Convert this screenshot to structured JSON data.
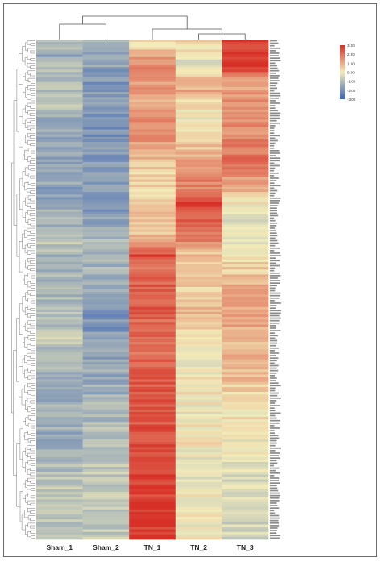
{
  "chart_data": {
    "type": "heatmap",
    "columns": [
      "Sham_1",
      "Sham_2",
      "TN_1",
      "TN_2",
      "TN_3"
    ],
    "legend": {
      "ticks": [
        "3.00",
        "2.00",
        "1.00",
        "0.00",
        "-1.00",
        "-2.00",
        "-3.00"
      ],
      "tick_values": [
        3,
        2,
        1,
        0,
        -1,
        -2,
        -3
      ],
      "range": [
        -3,
        3
      ],
      "placement": "top-right",
      "colors": {
        "high": "#d73027",
        "mid": "#f2ecba",
        "low": "#3b63b5"
      }
    },
    "row_count": 200,
    "column_dendrogram": "Sham_1 and Sham_2 cluster together; TN_2 and TN_3 cluster, then join TN_1",
    "anchors": {
      "Sham_1": [
        [
          0,
          -1.0
        ],
        [
          6,
          -1.6
        ],
        [
          10,
          -1.0
        ],
        [
          15,
          -1.1
        ],
        [
          20,
          -1.0
        ],
        [
          25,
          -0.8
        ],
        [
          30,
          -1.4
        ],
        [
          40,
          -1.6
        ],
        [
          50,
          -1.5
        ],
        [
          60,
          -1.6
        ],
        [
          70,
          -1.3
        ],
        [
          80,
          -0.9
        ],
        [
          90,
          -1.4
        ],
        [
          100,
          -1.2
        ],
        [
          110,
          -1.0
        ],
        [
          120,
          -0.8
        ],
        [
          130,
          -1.2
        ],
        [
          140,
          -1.5
        ],
        [
          150,
          -1.3
        ],
        [
          160,
          -1.4
        ],
        [
          170,
          -1.1
        ],
        [
          180,
          -0.9
        ],
        [
          190,
          -0.8
        ],
        [
          199,
          -0.9
        ]
      ],
      "Sham_2": [
        [
          0,
          -1.1
        ],
        [
          6,
          -1.7
        ],
        [
          10,
          -1.6
        ],
        [
          15,
          -1.9
        ],
        [
          20,
          -1.8
        ],
        [
          25,
          -1.9
        ],
        [
          30,
          -2.0
        ],
        [
          40,
          -1.9
        ],
        [
          50,
          -1.8
        ],
        [
          60,
          -1.7
        ],
        [
          70,
          -1.7
        ],
        [
          80,
          -1.1
        ],
        [
          90,
          -1.2
        ],
        [
          100,
          -1.6
        ],
        [
          110,
          -1.9
        ],
        [
          120,
          -1.8
        ],
        [
          130,
          -1.5
        ],
        [
          140,
          -1.4
        ],
        [
          150,
          -1.1
        ],
        [
          160,
          -0.9
        ],
        [
          170,
          -0.8
        ],
        [
          180,
          -0.7
        ],
        [
          190,
          -0.7
        ],
        [
          199,
          -0.8
        ]
      ],
      "TN_1": [
        [
          0,
          0.2
        ],
        [
          5,
          0.7
        ],
        [
          10,
          1.8
        ],
        [
          15,
          1.5
        ],
        [
          20,
          1.2
        ],
        [
          25,
          1.0
        ],
        [
          30,
          1.4
        ],
        [
          40,
          1.3
        ],
        [
          50,
          0.6
        ],
        [
          60,
          0.3
        ],
        [
          70,
          0.6
        ],
        [
          80,
          0.8
        ],
        [
          86,
          2.8
        ],
        [
          90,
          2.0
        ],
        [
          100,
          2.4
        ],
        [
          110,
          2.2
        ],
        [
          120,
          2.0
        ],
        [
          130,
          2.2
        ],
        [
          140,
          2.4
        ],
        [
          150,
          2.3
        ],
        [
          160,
          2.5
        ],
        [
          170,
          2.6
        ],
        [
          180,
          2.8
        ],
        [
          190,
          2.9
        ],
        [
          199,
          2.9
        ]
      ],
      "TN_2": [
        [
          0,
          0.3
        ],
        [
          5,
          0.0
        ],
        [
          10,
          -0.5
        ],
        [
          15,
          0.6
        ],
        [
          20,
          1.0
        ],
        [
          25,
          0.2
        ],
        [
          30,
          0.0
        ],
        [
          40,
          0.5
        ],
        [
          50,
          1.2
        ],
        [
          55,
          1.8
        ],
        [
          60,
          1.5
        ],
        [
          65,
          2.6
        ],
        [
          70,
          2.4
        ],
        [
          75,
          2.0
        ],
        [
          80,
          1.6
        ],
        [
          85,
          0.8
        ],
        [
          90,
          0.3
        ],
        [
          100,
          0.6
        ],
        [
          110,
          0.9
        ],
        [
          120,
          0.2
        ],
        [
          130,
          -0.2
        ],
        [
          140,
          0.2
        ],
        [
          150,
          -0.1
        ],
        [
          160,
          0.3
        ],
        [
          170,
          -0.4
        ],
        [
          180,
          0.2
        ],
        [
          190,
          0.0
        ],
        [
          199,
          0.1
        ]
      ],
      "TN_3": [
        [
          0,
          2.8
        ],
        [
          10,
          2.9
        ],
        [
          15,
          1.4
        ],
        [
          20,
          1.2
        ],
        [
          30,
          1.5
        ],
        [
          40,
          1.6
        ],
        [
          50,
          2.0
        ],
        [
          60,
          0.8
        ],
        [
          70,
          -0.5
        ],
        [
          75,
          0.3
        ],
        [
          80,
          -0.3
        ],
        [
          85,
          0.2
        ],
        [
          90,
          0.5
        ],
        [
          100,
          0.9
        ],
        [
          110,
          1.3
        ],
        [
          120,
          0.6
        ],
        [
          130,
          1.0
        ],
        [
          140,
          0.4
        ],
        [
          150,
          0.2
        ],
        [
          160,
          0.0
        ],
        [
          170,
          -0.2
        ],
        [
          180,
          -0.4
        ],
        [
          190,
          -0.5
        ],
        [
          199,
          -0.6
        ]
      ]
    }
  }
}
